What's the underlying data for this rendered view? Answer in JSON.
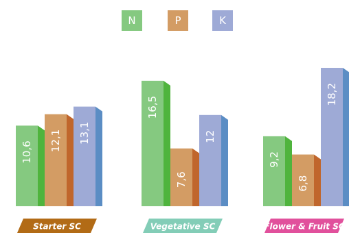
{
  "chart_data": {
    "type": "bar",
    "categories": [
      "Starter SC",
      "Vegetative SC",
      "Flower & Fruit SC"
    ],
    "series": [
      {
        "name": "N",
        "values": [
          10.6,
          16.5,
          9.2
        ],
        "labels": [
          "10,6",
          "16,5",
          "9,2"
        ]
      },
      {
        "name": "P",
        "values": [
          12.1,
          7.6,
          6.8
        ],
        "labels": [
          "12,1",
          "7,6",
          "6,8"
        ]
      },
      {
        "name": "K",
        "values": [
          13.1,
          12,
          18.2
        ],
        "labels": [
          "13,1",
          "12",
          "18,2"
        ]
      }
    ],
    "ylim": [
      0,
      18.2
    ],
    "grid": false,
    "legend": "top-center"
  },
  "colors": {
    "N": {
      "front": "#85c980",
      "side": "#4fb43d"
    },
    "P": {
      "front": "#d39c64",
      "side": "#c0662c"
    },
    "K": {
      "front": "#9eaad6",
      "side": "#5b8dc4"
    },
    "categories": [
      "#b26b16",
      "#83cdb7",
      "#e1509c"
    ]
  }
}
